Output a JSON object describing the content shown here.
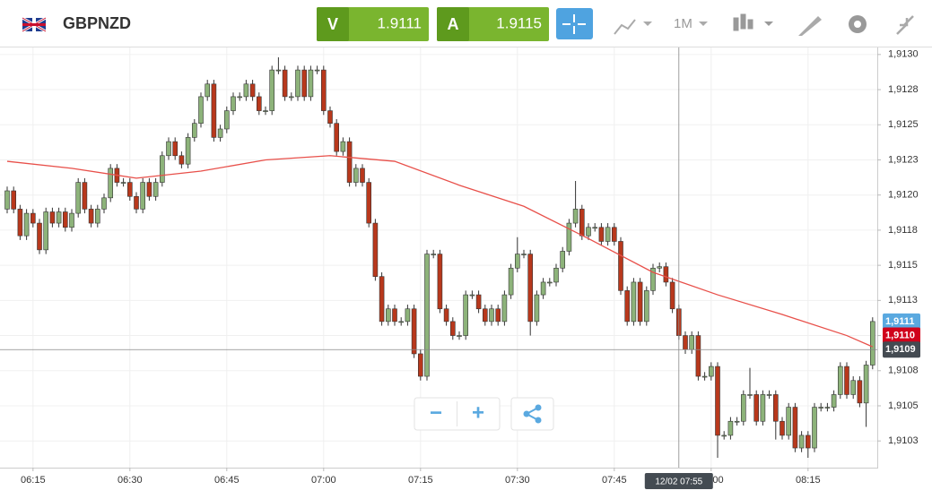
{
  "header": {
    "symbol": "GBPNZD",
    "bid_label": "V",
    "bid": "1.9111",
    "ask_label": "A",
    "ask": "1.9115",
    "interval": "1M"
  },
  "controls": {
    "zoom_out": "−",
    "zoom_in": "+"
  },
  "chart_data": {
    "type": "candlestick",
    "up_color": "#8db37a",
    "down_color": "#b8381c",
    "grid": true,
    "x": [
      "06:11",
      "06:12",
      "06:13",
      "06:14",
      "06:15",
      "06:16",
      "06:17",
      "06:18",
      "06:19",
      "06:20",
      "06:21",
      "06:22",
      "06:23",
      "06:24",
      "06:25",
      "06:26",
      "06:27",
      "06:28",
      "06:29",
      "06:30",
      "06:31",
      "06:32",
      "06:33",
      "06:34",
      "06:35",
      "06:36",
      "06:37",
      "06:38",
      "06:39",
      "06:40",
      "06:41",
      "06:42",
      "06:43",
      "06:44",
      "06:45",
      "06:46",
      "06:47",
      "06:48",
      "06:49",
      "06:50",
      "06:51",
      "06:52",
      "06:53",
      "06:54",
      "06:55",
      "06:56",
      "06:57",
      "06:58",
      "06:59",
      "07:00",
      "07:01",
      "07:02",
      "07:03",
      "07:04",
      "07:05",
      "07:06",
      "07:07",
      "07:08",
      "07:09",
      "07:10",
      "07:11",
      "07:12",
      "07:13",
      "07:14",
      "07:15",
      "07:16",
      "07:17",
      "07:18",
      "07:19",
      "07:20",
      "07:21",
      "07:22",
      "07:23",
      "07:24",
      "07:25",
      "07:26",
      "07:27",
      "07:28",
      "07:29",
      "07:30",
      "07:31",
      "07:32",
      "07:33",
      "07:34",
      "07:35",
      "07:36",
      "07:37",
      "07:38",
      "07:39",
      "07:40",
      "07:41",
      "07:42",
      "07:43",
      "07:44",
      "07:45",
      "07:46",
      "07:47",
      "07:48",
      "07:49",
      "07:50",
      "07:51",
      "07:52",
      "07:53",
      "07:54",
      "07:55",
      "07:56",
      "07:57",
      "07:58",
      "07:59",
      "08:00",
      "08:01",
      "08:02",
      "08:03",
      "08:04",
      "08:05",
      "08:06",
      "08:07",
      "08:08",
      "08:09",
      "08:10",
      "08:11",
      "08:12",
      "08:13",
      "08:14",
      "08:15",
      "08:16",
      "08:17",
      "08:18",
      "08:19",
      "08:20",
      "08:21",
      "08:22",
      "08:23",
      "08:24",
      "08:25"
    ],
    "open": [
      1.9119,
      1.91203,
      1.9119,
      1.91171,
      1.91187,
      1.9118,
      1.91161,
      1.91188,
      1.9118,
      1.91188,
      1.91177,
      1.91187,
      1.91209,
      1.9119,
      1.9118,
      1.9119,
      1.91198,
      1.91219,
      1.91209,
      1.91209,
      1.91199,
      1.9119,
      1.91209,
      1.91199,
      1.91209,
      1.91228,
      1.91238,
      1.91228,
      1.91222,
      1.91241,
      1.91251,
      1.9127,
      1.91279,
      1.91241,
      1.91247,
      1.9126,
      1.9127,
      1.9127,
      1.91279,
      1.9127,
      1.9126,
      1.9126,
      1.91289,
      1.91289,
      1.9127,
      1.9127,
      1.91289,
      1.9127,
      1.91289,
      1.91289,
      1.9126,
      1.91251,
      1.91231,
      1.91238,
      1.91209,
      1.91219,
      1.91209,
      1.9118,
      1.91142,
      1.9111,
      1.91119,
      1.9111,
      1.9111,
      1.91119,
      1.91087,
      1.91071,
      1.91158,
      1.91158,
      1.91119,
      1.9111,
      1.911,
      1.911,
      1.91129,
      1.91129,
      1.91119,
      1.9111,
      1.91119,
      1.9111,
      1.91129,
      1.91148,
      1.91158,
      1.91158,
      1.9111,
      1.91129,
      1.91138,
      1.91138,
      1.91148,
      1.9116,
      1.9118,
      1.9119,
      1.91171,
      1.91177,
      1.91177,
      1.91167,
      1.91177,
      1.91167,
      1.91132,
      1.9111,
      1.91138,
      1.9111,
      1.91132,
      1.91148,
      1.91149,
      1.91138,
      1.91119,
      1.911,
      1.9109,
      1.911,
      1.91071,
      1.91071,
      1.91078,
      1.91029,
      1.91029,
      1.91039,
      1.91039,
      1.91058,
      1.91058,
      1.91039,
      1.91058,
      1.91058,
      1.91039,
      1.91029,
      1.91049,
      1.9102,
      1.91029,
      1.9102,
      1.91049,
      1.91049,
      1.91049,
      1.91058,
      1.91078,
      1.91058,
      1.91068,
      1.91052,
      1.91079
    ],
    "high": [
      1.91206,
      1.91206,
      1.91193,
      1.9119,
      1.9119,
      1.91183,
      1.91191,
      1.91191,
      1.91191,
      1.91191,
      1.9119,
      1.91212,
      1.91212,
      1.91193,
      1.91193,
      1.91201,
      1.91222,
      1.91222,
      1.91212,
      1.91212,
      1.91202,
      1.91212,
      1.91212,
      1.91212,
      1.91231,
      1.91241,
      1.91241,
      1.91231,
      1.91244,
      1.91254,
      1.91273,
      1.91282,
      1.91282,
      1.9125,
      1.91263,
      1.91273,
      1.91273,
      1.91282,
      1.91282,
      1.91273,
      1.91263,
      1.91292,
      1.91298,
      1.91292,
      1.91273,
      1.91292,
      1.91292,
      1.91292,
      1.91292,
      1.91292,
      1.91263,
      1.91254,
      1.91241,
      1.91241,
      1.91222,
      1.91222,
      1.91212,
      1.91183,
      1.91145,
      1.91122,
      1.91122,
      1.91113,
      1.91122,
      1.91122,
      1.9109,
      1.91161,
      1.91161,
      1.91161,
      1.91122,
      1.91113,
      1.91103,
      1.91132,
      1.91132,
      1.91132,
      1.91122,
      1.91122,
      1.91122,
      1.91132,
      1.91151,
      1.9117,
      1.91161,
      1.91161,
      1.91132,
      1.91141,
      1.91141,
      1.91151,
      1.91163,
      1.91183,
      1.9121,
      1.91193,
      1.9118,
      1.9118,
      1.9118,
      1.9118,
      1.9118,
      1.9117,
      1.91135,
      1.91141,
      1.91141,
      1.91135,
      1.91151,
      1.91152,
      1.91152,
      1.91141,
      1.91122,
      1.91103,
      1.91103,
      1.91103,
      1.91074,
      1.91081,
      1.91081,
      1.91032,
      1.91042,
      1.91042,
      1.91061,
      1.91077,
      1.91061,
      1.91061,
      1.91061,
      1.91061,
      1.91042,
      1.91052,
      1.91052,
      1.91032,
      1.91032,
      1.91052,
      1.91052,
      1.91052,
      1.91061,
      1.91081,
      1.91081,
      1.91071,
      1.91071,
      1.91082,
      1.91113
    ],
    "low": [
      1.91187,
      1.91187,
      1.91168,
      1.91168,
      1.91177,
      1.91158,
      1.91158,
      1.91177,
      1.91177,
      1.91174,
      1.91174,
      1.91184,
      1.91187,
      1.91177,
      1.91177,
      1.91187,
      1.91195,
      1.91206,
      1.91206,
      1.91196,
      1.91187,
      1.91187,
      1.91196,
      1.91196,
      1.91206,
      1.91225,
      1.91225,
      1.91219,
      1.91219,
      1.91238,
      1.91248,
      1.91267,
      1.91238,
      1.91238,
      1.91244,
      1.91257,
      1.91267,
      1.91267,
      1.91267,
      1.91257,
      1.91257,
      1.91257,
      1.91286,
      1.91267,
      1.91267,
      1.91267,
      1.91267,
      1.91267,
      1.91286,
      1.91257,
      1.91248,
      1.91228,
      1.91228,
      1.91206,
      1.91206,
      1.91206,
      1.91177,
      1.91139,
      1.91107,
      1.91107,
      1.91107,
      1.91107,
      1.91107,
      1.91084,
      1.91068,
      1.91068,
      1.91155,
      1.91116,
      1.91107,
      1.91097,
      1.91097,
      1.91097,
      1.91126,
      1.91116,
      1.91107,
      1.91107,
      1.91107,
      1.91107,
      1.91126,
      1.91145,
      1.91155,
      1.911,
      1.91107,
      1.91126,
      1.91135,
      1.91135,
      1.91145,
      1.91157,
      1.91177,
      1.91168,
      1.91168,
      1.91174,
      1.91164,
      1.91164,
      1.91164,
      1.91129,
      1.91107,
      1.91107,
      1.91107,
      1.91107,
      1.91129,
      1.91145,
      1.91135,
      1.91116,
      1.91097,
      1.91087,
      1.91087,
      1.91068,
      1.91068,
      1.91068,
      1.91013,
      1.91026,
      1.91026,
      1.91036,
      1.91036,
      1.91055,
      1.91036,
      1.91036,
      1.91055,
      1.91026,
      1.91026,
      1.91026,
      1.91017,
      1.91017,
      1.91013,
      1.91017,
      1.91046,
      1.91046,
      1.91046,
      1.91055,
      1.91055,
      1.91055,
      1.91049,
      1.91035,
      1.91076
    ],
    "close": [
      1.91203,
      1.9119,
      1.91171,
      1.91187,
      1.9118,
      1.91161,
      1.91188,
      1.9118,
      1.91188,
      1.91177,
      1.91187,
      1.91209,
      1.9119,
      1.9118,
      1.9119,
      1.91198,
      1.91219,
      1.91209,
      1.91209,
      1.91199,
      1.9119,
      1.91209,
      1.91199,
      1.91209,
      1.91228,
      1.91238,
      1.91228,
      1.91222,
      1.91241,
      1.91251,
      1.9127,
      1.91279,
      1.91241,
      1.91247,
      1.9126,
      1.9127,
      1.9127,
      1.91279,
      1.9127,
      1.9126,
      1.9126,
      1.91289,
      1.91289,
      1.9127,
      1.9127,
      1.91289,
      1.9127,
      1.91289,
      1.91289,
      1.9126,
      1.91251,
      1.91231,
      1.91238,
      1.91209,
      1.91219,
      1.91209,
      1.9118,
      1.91142,
      1.9111,
      1.91119,
      1.9111,
      1.9111,
      1.91119,
      1.91087,
      1.91071,
      1.91158,
      1.91158,
      1.91119,
      1.9111,
      1.911,
      1.911,
      1.91129,
      1.91129,
      1.91119,
      1.9111,
      1.91119,
      1.9111,
      1.91129,
      1.91148,
      1.91158,
      1.91158,
      1.9111,
      1.91129,
      1.91138,
      1.91138,
      1.91148,
      1.9116,
      1.9118,
      1.9119,
      1.91171,
      1.91177,
      1.91177,
      1.91167,
      1.91177,
      1.91167,
      1.91132,
      1.9111,
      1.91138,
      1.9111,
      1.91132,
      1.91148,
      1.91149,
      1.91138,
      1.91119,
      1.911,
      1.9109,
      1.911,
      1.91071,
      1.91071,
      1.91078,
      1.91029,
      1.91029,
      1.91039,
      1.91039,
      1.91058,
      1.91058,
      1.91039,
      1.91058,
      1.91058,
      1.91039,
      1.91029,
      1.91049,
      1.9102,
      1.91029,
      1.9102,
      1.91049,
      1.91049,
      1.91049,
      1.91058,
      1.91078,
      1.91058,
      1.91068,
      1.91052,
      1.91079,
      1.9111
    ],
    "moving_average": {
      "color": "#e8504a",
      "x": [
        "06:11",
        "06:21",
        "06:31",
        "06:41",
        "06:51",
        "07:01",
        "07:11",
        "07:21",
        "07:31",
        "07:41",
        "07:51",
        "08:01",
        "08:11",
        "08:21",
        "08:25"
      ],
      "values": [
        1.91224,
        1.91219,
        1.91212,
        1.91217,
        1.91225,
        1.91228,
        1.91224,
        1.91207,
        1.91192,
        1.91169,
        1.91145,
        1.91129,
        1.91115,
        1.911,
        1.91092
      ]
    },
    "ylim": [
      1.91006,
      1.91305
    ],
    "yticks": [
      {
        "value": 1.913,
        "label": "1,9130"
      },
      {
        "value": 1.91275,
        "label": "1,9128"
      },
      {
        "value": 1.9125,
        "label": "1,9125"
      },
      {
        "value": 1.91225,
        "label": "1,9123"
      },
      {
        "value": 1.912,
        "label": "1,9120"
      },
      {
        "value": 1.91175,
        "label": "1,9118"
      },
      {
        "value": 1.9115,
        "label": "1,9115"
      },
      {
        "value": 1.91125,
        "label": "1,9113"
      },
      {
        "value": 1.911,
        "label": "1,9110"
      },
      {
        "value": 1.91075,
        "label": "1,9108"
      },
      {
        "value": 1.9105,
        "label": "1,9105"
      },
      {
        "value": 1.91025,
        "label": "1,9103"
      }
    ],
    "xticks": [
      "06:15",
      "06:30",
      "06:45",
      "07:00",
      "07:15",
      "07:30",
      "07:45",
      "08:00",
      "08:15"
    ],
    "price_markers": [
      {
        "value": 1.9111,
        "label": "1,9111",
        "color": "#5aa9e0"
      },
      {
        "value": 1.911,
        "label": "1,9110",
        "color": "#d0021b"
      },
      {
        "value": 1.9109,
        "label": "1,9109",
        "color": "#444b52"
      }
    ],
    "crosshair": {
      "x": "07:55",
      "y": 1.9109,
      "label": "12/02 07:55"
    }
  }
}
